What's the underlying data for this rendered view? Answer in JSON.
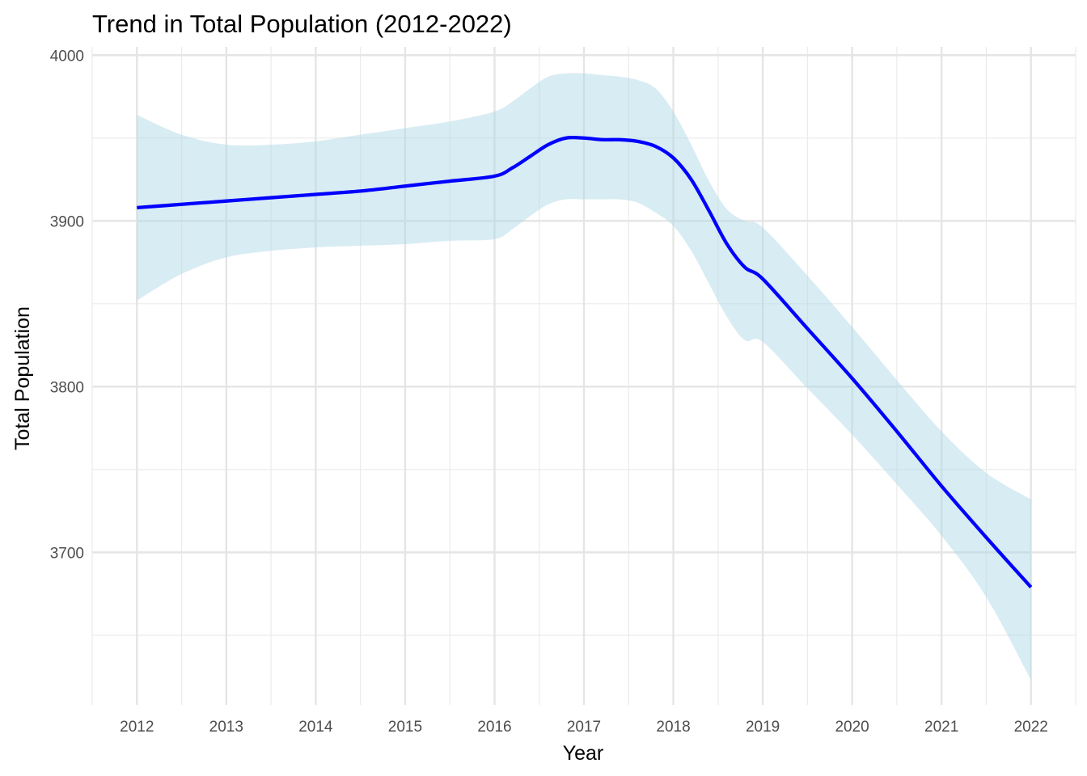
{
  "chart_data": {
    "type": "line",
    "title": "Trend in Total Population (2012-2022)",
    "xlabel": "Year",
    "ylabel": "Total Population",
    "xlim": [
      2011.5,
      2022.5
    ],
    "ylim": [
      3608,
      4005
    ],
    "x_ticks": [
      2012,
      2013,
      2014,
      2015,
      2016,
      2017,
      2018,
      2019,
      2020,
      2021,
      2022
    ],
    "x_tick_labels": [
      "2012",
      "2013",
      "2014",
      "2015",
      "2016",
      "2017",
      "2018",
      "2019",
      "2020",
      "2021",
      "2022"
    ],
    "y_ticks": [
      3700,
      3800,
      3900,
      4000
    ],
    "y_tick_labels": [
      "3700",
      "3800",
      "3900",
      "4000"
    ],
    "y_minor_ticks": [
      3650,
      3750,
      3850,
      3950
    ],
    "grid": true,
    "legend": "none",
    "line_color": "#0000ff",
    "band_color": "#add8e6",
    "series": [
      {
        "x": [
          2012,
          2012.5,
          2013,
          2013.5,
          2014,
          2014.5,
          2015,
          2015.5,
          2016,
          2016.2,
          2016.4,
          2016.6,
          2016.8,
          2017,
          2017.2,
          2017.4,
          2017.6,
          2017.8,
          2018,
          2018.2,
          2018.4,
          2018.6,
          2018.8,
          2019,
          2019.5,
          2020,
          2020.5,
          2021,
          2021.5,
          2022
        ],
        "y": [
          3908,
          3910,
          3912,
          3914,
          3916,
          3918,
          3921,
          3924,
          3927,
          3932,
          3939,
          3946,
          3950,
          3950,
          3949,
          3949,
          3948,
          3945,
          3938,
          3925,
          3906,
          3886,
          3872,
          3865,
          3835,
          3805,
          3773,
          3740,
          3709,
          3679
        ],
        "ci_lower": [
          3852,
          3868,
          3878,
          3882,
          3884,
          3885,
          3886,
          3888,
          3889,
          3895,
          3903,
          3910,
          3913,
          3913,
          3913,
          3913,
          3911,
          3905,
          3897,
          3882,
          3862,
          3842,
          3828,
          3827,
          3799,
          3771,
          3741,
          3710,
          3673,
          3623
        ],
        "ci_upper": [
          3964,
          3952,
          3946,
          3946,
          3948,
          3952,
          3956,
          3960,
          3966,
          3972,
          3980,
          3987,
          3989,
          3989,
          3988,
          3987,
          3985,
          3980,
          3966,
          3946,
          3924,
          3907,
          3900,
          3896,
          3867,
          3836,
          3804,
          3773,
          3748,
          3732
        ]
      }
    ]
  }
}
